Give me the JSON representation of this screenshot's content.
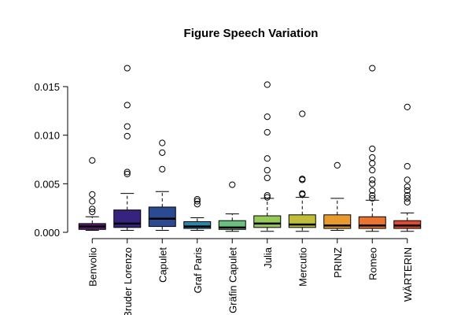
{
  "chart_data": {
    "type": "boxplot",
    "title": "Figure Speech Variation",
    "xlabel": "",
    "ylabel": "",
    "ylim": [
      0,
      0.017
    ],
    "yticks": [
      0.0,
      0.005,
      0.01,
      0.015
    ],
    "ytick_labels": [
      "0.000",
      "0.005",
      "0.010",
      "0.015"
    ],
    "grid": false,
    "legend": "none",
    "categories": [
      "Benvolio",
      "Bruder Lorenzo",
      "Capulet",
      "Graf Paris",
      "Gräfin Capulet",
      "Julia",
      "Mercutio",
      "PRINZ",
      "Romeo",
      "WÄRTERIN"
    ],
    "boxes": [
      {
        "name": "Benvolio",
        "color": "#5c1b72",
        "whisker_low": 0.0002,
        "q1": 0.0003,
        "median": 0.0006,
        "q3": 0.0009,
        "whisker_high": 0.0016,
        "outliers": [
          0.0074,
          0.0039,
          0.0032,
          0.0024,
          0.0021
        ]
      },
      {
        "name": "Bruder Lorenzo",
        "color": "#35237e",
        "whisker_low": 0.0002,
        "q1": 0.0005,
        "median": 0.0009,
        "q3": 0.0023,
        "whisker_high": 0.004,
        "outliers": [
          0.0169,
          0.0131,
          0.0109,
          0.0099,
          0.0062,
          0.006
        ]
      },
      {
        "name": "Capulet",
        "color": "#2b4a91",
        "whisker_low": 0.0002,
        "q1": 0.0006,
        "median": 0.0014,
        "q3": 0.0026,
        "whisker_high": 0.0042,
        "outliers": [
          0.0092,
          0.0082,
          0.0065
        ]
      },
      {
        "name": "Graf Paris",
        "color": "#2c86a8",
        "whisker_low": 0.0002,
        "q1": 0.0004,
        "median": 0.0006,
        "q3": 0.0011,
        "whisker_high": 0.0015,
        "outliers": [
          0.0034,
          0.0032,
          0.0029
        ]
      },
      {
        "name": "Gräfin Capulet",
        "color": "#6cc07f",
        "whisker_low": 0.0001,
        "q1": 0.0003,
        "median": 0.0005,
        "q3": 0.0012,
        "whisker_high": 0.0019,
        "outliers": [
          0.0049
        ]
      },
      {
        "name": "Julia",
        "color": "#97c85a",
        "whisker_low": 0.0001,
        "q1": 0.0005,
        "median": 0.0009,
        "q3": 0.0017,
        "whisker_high": 0.0035,
        "outliers": [
          0.0152,
          0.0119,
          0.0103,
          0.0076,
          0.0064,
          0.0056,
          0.0038,
          0.0036
        ]
      },
      {
        "name": "Mercutio",
        "color": "#bfbd3b",
        "whisker_low": 0.0001,
        "q1": 0.0005,
        "median": 0.0008,
        "q3": 0.0018,
        "whisker_high": 0.0036,
        "outliers": [
          0.0122,
          0.0055,
          0.0054,
          0.004,
          0.0039
        ]
      },
      {
        "name": "PRINZ",
        "color": "#e99a2d",
        "whisker_low": 0.0002,
        "q1": 0.0004,
        "median": 0.0007,
        "q3": 0.0018,
        "whisker_high": 0.0035,
        "outliers": [
          0.0069
        ]
      },
      {
        "name": "Romeo",
        "color": "#e8742d",
        "whisker_low": 0.0001,
        "q1": 0.0004,
        "median": 0.0007,
        "q3": 0.0016,
        "whisker_high": 0.0033,
        "outliers": [
          0.0169,
          0.0086,
          0.0077,
          0.0071,
          0.0064,
          0.0054,
          0.005,
          0.0043,
          0.0038,
          0.0035
        ]
      },
      {
        "name": "WÄRTERIN",
        "color": "#e04b2d",
        "whisker_low": 0.0001,
        "q1": 0.0004,
        "median": 0.0007,
        "q3": 0.0012,
        "whisker_high": 0.002,
        "outliers": [
          0.0129,
          0.0068,
          0.0054,
          0.0047,
          0.0043,
          0.0038,
          0.0035,
          0.0031
        ]
      }
    ]
  }
}
